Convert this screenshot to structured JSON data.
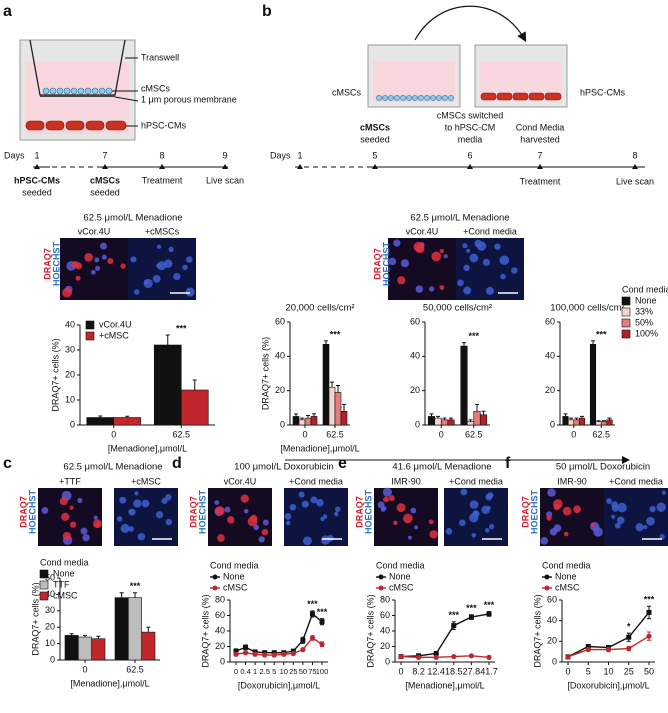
{
  "panels": {
    "a": {
      "letter": "a",
      "schematic": [
        "Transwell",
        "cMSCs",
        "1 μm porous membrane",
        "hPSC-CMs"
      ],
      "timeline": {
        "prefix": "Days",
        "days": [
          "1",
          "7",
          "8",
          "9"
        ],
        "events": [
          "hPSC-CMs",
          "seeded",
          "cMSCs",
          "seeded",
          "Treatment",
          "Live scan"
        ]
      },
      "images": {
        "title": "62.5 μmol/L Menadione",
        "stains": [
          "DRAQ7",
          "HOECHST"
        ],
        "labels": [
          "vCor.4U",
          "+cMSCs"
        ]
      }
    },
    "b": {
      "letter": "b",
      "schematic": [
        "cMSCs",
        "hPSC-CMs"
      ],
      "timeline": {
        "prefix": "Days",
        "days": [
          "1",
          "5",
          "6",
          "7",
          "8"
        ],
        "events": [
          "cMSCs",
          "seeded",
          "cMSCs switched",
          "to hPSC-CM",
          "media",
          "Cond Media",
          "harvested",
          "Treatment",
          "Live scan"
        ]
      },
      "images": {
        "title": "62.5 μmol/L Menadione",
        "stains": [
          "DRAQ7",
          "HOECHST"
        ],
        "labels": [
          "vCor.4U",
          "+Cond media"
        ]
      }
    },
    "c": {
      "letter": "c",
      "images": {
        "title": "62.5 μmol/L Menadione",
        "stains": [
          "DRAQ7",
          "HOECHST"
        ],
        "labels": [
          "+TTF",
          "+cMSC"
        ]
      }
    },
    "d": {
      "letter": "d",
      "images": {
        "title": "100 μmol/L Doxorubicin",
        "stains": [
          "DRAQ7",
          "HOECHST"
        ],
        "labels": [
          "vCor.4U",
          "+Cond media"
        ]
      }
    },
    "e": {
      "letter": "e",
      "images": {
        "title": "41.6 μmol/L Menadione",
        "stains": [
          "DRAQ7",
          "HOECHST"
        ],
        "labels": [
          "IMR-90",
          "+Cond media"
        ]
      }
    },
    "f": {
      "letter": "f",
      "images": {
        "title": "50 μmol/L Doxorubicin",
        "stains": [
          "DRAQ7",
          "HOECHST"
        ],
        "labels": [
          "IMR-90",
          "+Cond media"
        ]
      }
    }
  },
  "chart_data": [
    {
      "type": "bar",
      "categories": [
        "0",
        "62.5"
      ],
      "series": [
        {
          "name": "vCor.4U",
          "color": "#111111",
          "values": [
            3,
            32
          ],
          "errors": [
            0.6,
            4
          ]
        },
        {
          "name": "+cMSC",
          "color": "#c0272d",
          "values": [
            3,
            14
          ],
          "errors": [
            0.5,
            4
          ]
        }
      ],
      "ylim": [
        0,
        40
      ],
      "yticks": [
        0,
        10,
        20,
        30,
        40
      ],
      "ylabel": "DRAQ7+ cells (%)",
      "xlabel": "[Menadione],μmol/L",
      "legend": "upper left",
      "annotations": [
        {
          "text": "***",
          "x": "62.5"
        }
      ]
    },
    {
      "type": "bar",
      "title": "20,000 cells/cm²",
      "categories": [
        "0",
        "62.5"
      ],
      "series": [
        {
          "color": "#111111",
          "values": [
            5,
            47
          ],
          "errors": [
            1.5,
            2
          ]
        },
        {
          "color": "#f6d2d2",
          "values": [
            3,
            22
          ],
          "errors": [
            1,
            3
          ]
        },
        {
          "color": "#e47c7c",
          "values": [
            4,
            19
          ],
          "errors": [
            1.5,
            4
          ]
        },
        {
          "color": "#b3202a",
          "values": [
            5,
            8
          ],
          "errors": [
            1.5,
            4
          ]
        }
      ],
      "ylim": [
        0,
        60
      ],
      "yticks": [
        0,
        20,
        40,
        60
      ],
      "ylabel": "DRAQ7+ cells (%)",
      "xlabel": "[Menadione],μmol/L",
      "annotations": [
        {
          "text": "***",
          "x": "62.5"
        }
      ]
    },
    {
      "type": "bar",
      "title": "50,000 cells/cm²",
      "categories": [
        "0",
        "62.5"
      ],
      "series": [
        {
          "color": "#111111",
          "values": [
            5,
            46
          ],
          "errors": [
            1.5,
            2
          ]
        },
        {
          "color": "#f6d2d2",
          "values": [
            4,
            2
          ],
          "errors": [
            1,
            1
          ]
        },
        {
          "color": "#e47c7c",
          "values": [
            3,
            8
          ],
          "errors": [
            1,
            4
          ]
        },
        {
          "color": "#b3202a",
          "values": [
            3,
            6
          ],
          "errors": [
            1,
            2
          ]
        }
      ],
      "ylim": [
        0,
        60
      ],
      "yticks": [
        0,
        20,
        40,
        60
      ],
      "annotations": [
        {
          "text": "***",
          "x": "62.5"
        }
      ]
    },
    {
      "type": "bar",
      "title": "100,000 cells/cm²",
      "categories": [
        "0",
        "62.5"
      ],
      "legend": "right",
      "legend_title": "Cond media",
      "series": [
        {
          "name": "None",
          "color": "#111111",
          "values": [
            5,
            47
          ],
          "errors": [
            1.5,
            2
          ]
        },
        {
          "name": "33%",
          "color": "#f6d2d2",
          "values": [
            3,
            2
          ],
          "errors": [
            1,
            0.5
          ]
        },
        {
          "name": "50%",
          "color": "#e47c7c",
          "values": [
            3,
            2
          ],
          "errors": [
            1,
            0.5
          ]
        },
        {
          "name": "100%",
          "color": "#b3202a",
          "values": [
            4,
            3
          ],
          "errors": [
            1,
            1
          ]
        }
      ],
      "ylim": [
        0,
        60
      ],
      "yticks": [
        0,
        20,
        40,
        60
      ],
      "annotations": [
        {
          "text": "***",
          "x": "62.5"
        }
      ]
    },
    {
      "type": "bar",
      "categories": [
        "0",
        "62.5"
      ],
      "legend": "upper left",
      "legend_title": "Cond media",
      "series": [
        {
          "name": "None",
          "color": "#111111",
          "values": [
            15,
            38
          ],
          "errors": [
            1,
            3
          ]
        },
        {
          "name": "TTF",
          "color": "#bdbdbd",
          "values": [
            14,
            38
          ],
          "errors": [
            1,
            3
          ]
        },
        {
          "name": "cMSC",
          "color": "#c0272d",
          "values": [
            13,
            17
          ],
          "errors": [
            1.5,
            3
          ]
        }
      ],
      "ylim": [
        0,
        50
      ],
      "yticks": [
        0,
        10,
        20,
        30,
        40,
        50
      ],
      "ylabel": "DRAQ7+ cells (%)",
      "xlabel": "[Menadione],μmol/L",
      "annotations": [
        {
          "text": "***",
          "x": "62.5"
        }
      ]
    },
    {
      "type": "line",
      "categories": [
        "0",
        "0.4",
        "1",
        "2.5",
        "5",
        "10",
        "25",
        "50",
        "75",
        "100"
      ],
      "legend": "upper left",
      "legend_title": "Cond media",
      "series": [
        {
          "name": "None",
          "color": "#111111",
          "marker": "square",
          "values": [
            14,
            19,
            13,
            12,
            12,
            12,
            14,
            28,
            62,
            52
          ],
          "errors": [
            3,
            3,
            2,
            2,
            2,
            2,
            2,
            4,
            4,
            4
          ]
        },
        {
          "name": "cMSC",
          "color": "#c0272d",
          "marker": "circle",
          "values": [
            10,
            12,
            10,
            9,
            9,
            10,
            11,
            16,
            31,
            23
          ],
          "errors": [
            2,
            2,
            2,
            2,
            2,
            2,
            2,
            2,
            3,
            3
          ]
        }
      ],
      "ylim": [
        0,
        80
      ],
      "yticks": [
        0,
        20,
        40,
        60,
        80
      ],
      "ylabel": "DRAQ7+ cells (%)",
      "xlabel": "[Doxorubicin],μmol/L",
      "annotations": [
        {
          "text": "***",
          "x": "75"
        },
        {
          "text": "***",
          "x": "100"
        }
      ]
    },
    {
      "type": "line",
      "categories": [
        "0",
        "8.2",
        "12.4",
        "18.5",
        "27.8",
        "41.7"
      ],
      "legend": "upper left",
      "legend_title": "Cond media",
      "series": [
        {
          "name": "None",
          "color": "#111111",
          "marker": "square",
          "values": [
            7,
            8,
            11,
            47,
            58,
            62
          ],
          "errors": [
            1,
            1,
            2,
            5,
            3,
            3
          ]
        },
        {
          "name": "cMSC",
          "color": "#c0272d",
          "marker": "circle",
          "values": [
            7,
            6,
            6,
            7,
            8,
            6
          ],
          "errors": [
            1,
            1,
            1,
            1,
            1,
            1
          ]
        }
      ],
      "ylim": [
        0,
        80
      ],
      "yticks": [
        0,
        20,
        40,
        60,
        80
      ],
      "ylabel": "DRAQ7+ cells (%)",
      "xlabel": "[Menadione],μmol/L",
      "annotations": [
        {
          "text": "***",
          "x": "18.5"
        },
        {
          "text": "***",
          "x": "27.8"
        },
        {
          "text": "***",
          "x": "41.7"
        }
      ]
    },
    {
      "type": "line",
      "categories": [
        "0",
        "5",
        "10",
        "25",
        "50"
      ],
      "legend": "upper left",
      "legend_title": "Cond media",
      "series": [
        {
          "name": "None",
          "color": "#111111",
          "marker": "square",
          "values": [
            5,
            15,
            14,
            24,
            48
          ],
          "errors": [
            1,
            1,
            2,
            4,
            6
          ]
        },
        {
          "name": "cMSC",
          "color": "#c0272d",
          "marker": "circle",
          "values": [
            5,
            12,
            12,
            13,
            25
          ],
          "errors": [
            1,
            1,
            2,
            2,
            4
          ]
        }
      ],
      "ylim": [
        0,
        60
      ],
      "yticks": [
        0,
        20,
        40,
        60
      ],
      "ylabel": "DRAQ7+ cells (%)",
      "xlabel": "[Doxorubicin],μmol/L",
      "annotations": [
        {
          "text": "*",
          "x": "25"
        },
        {
          "text": "***",
          "x": "50"
        }
      ]
    }
  ]
}
